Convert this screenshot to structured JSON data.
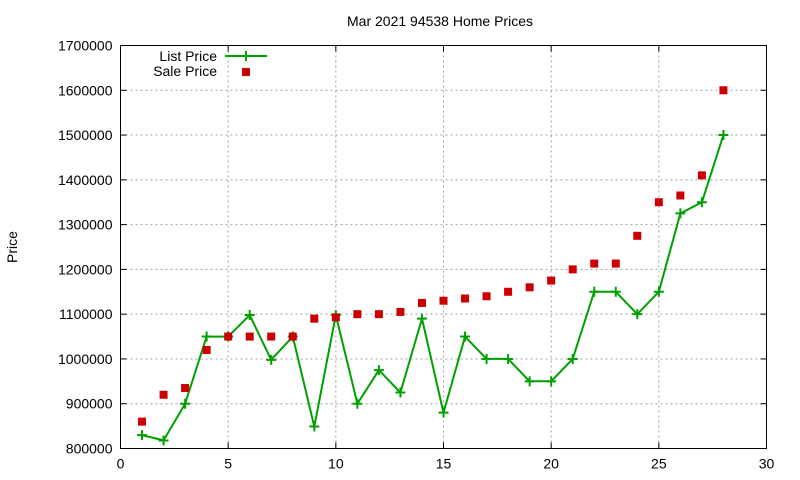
{
  "chart_data": {
    "type": "line",
    "title": "Mar 2021 94538 Home Prices",
    "xlabel": "",
    "ylabel": "Price",
    "xlim": [
      0,
      30
    ],
    "ylim": [
      800000,
      1700000
    ],
    "xticks": [
      0,
      5,
      10,
      15,
      20,
      25,
      30
    ],
    "yticks": [
      800000,
      900000,
      1000000,
      1100000,
      1200000,
      1300000,
      1400000,
      1500000,
      1600000,
      1700000
    ],
    "grid": true,
    "legend_position": "top-left",
    "x": [
      1,
      2,
      3,
      4,
      5,
      6,
      7,
      8,
      9,
      10,
      11,
      12,
      13,
      14,
      15,
      16,
      17,
      18,
      19,
      20,
      21,
      22,
      23,
      24,
      25,
      26,
      27,
      28
    ],
    "series": [
      {
        "name": "List Price",
        "style": "line-plus",
        "color": "#00a000",
        "values": [
          830000,
          818000,
          900000,
          1050000,
          1050000,
          1098000,
          998000,
          1050000,
          849000,
          1098000,
          900000,
          975000,
          925000,
          1090000,
          880000,
          1050000,
          1000000,
          1000000,
          950000,
          950000,
          1000000,
          1150000,
          1150000,
          1100000,
          1150000,
          1325000,
          1350000,
          1500000
        ]
      },
      {
        "name": "Sale Price",
        "style": "square-points",
        "color": "#cc0000",
        "values": [
          860000,
          920000,
          935000,
          1020000,
          1050000,
          1050000,
          1050000,
          1050000,
          1090000,
          1093000,
          1100000,
          1100000,
          1105000,
          1125000,
          1130000,
          1135000,
          1140000,
          1150000,
          1160000,
          1175000,
          1200000,
          1213000,
          1213000,
          1275000,
          1350000,
          1365000,
          1410000,
          1600000
        ]
      }
    ]
  }
}
